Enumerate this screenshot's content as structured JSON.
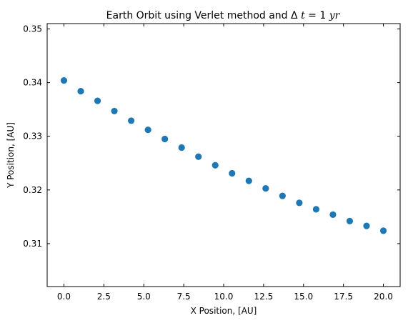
{
  "chart_data": {
    "type": "scatter",
    "title_text": "Earth Orbit using Verlet method and",
    "title_math": {
      "symbol": "Δ",
      "var_italic": "t",
      "equals": " = ",
      "value": "1",
      "unit_italic": "yr"
    },
    "xlabel": "X Position, [AU]",
    "ylabel": "Y Position, [AU]",
    "xlim": [
      -1.05,
      21.05
    ],
    "ylim": [
      0.302,
      0.351
    ],
    "xticks": [
      0.0,
      2.5,
      5.0,
      7.5,
      10.0,
      12.5,
      15.0,
      17.5,
      20.0
    ],
    "xtick_labels": [
      "0.0",
      "2.5",
      "5.0",
      "7.5",
      "10.0",
      "12.5",
      "15.0",
      "17.5",
      "20.0"
    ],
    "yticks": [
      0.31,
      0.32,
      0.33,
      0.34,
      0.35
    ],
    "ytick_labels": [
      "0.31",
      "0.32",
      "0.33",
      "0.34",
      "0.35"
    ],
    "grid": false,
    "marker_color": "#1f77b4",
    "points": [
      {
        "x": 0.0,
        "y": 0.3404
      },
      {
        "x": 1.0526,
        "y": 0.3384
      },
      {
        "x": 2.1053,
        "y": 0.3366
      },
      {
        "x": 3.1579,
        "y": 0.3347
      },
      {
        "x": 4.2105,
        "y": 0.3329
      },
      {
        "x": 5.2632,
        "y": 0.3312
      },
      {
        "x": 6.3158,
        "y": 0.3295
      },
      {
        "x": 7.3684,
        "y": 0.3279
      },
      {
        "x": 8.4211,
        "y": 0.3262
      },
      {
        "x": 9.4737,
        "y": 0.3246
      },
      {
        "x": 10.5263,
        "y": 0.3231
      },
      {
        "x": 11.5789,
        "y": 0.3217
      },
      {
        "x": 12.6316,
        "y": 0.3203
      },
      {
        "x": 13.6842,
        "y": 0.3189
      },
      {
        "x": 14.7368,
        "y": 0.3176
      },
      {
        "x": 15.7895,
        "y": 0.3164
      },
      {
        "x": 16.8421,
        "y": 0.3154
      },
      {
        "x": 17.8947,
        "y": 0.3142
      },
      {
        "x": 18.9474,
        "y": 0.3133
      },
      {
        "x": 20.0,
        "y": 0.3124
      }
    ]
  }
}
